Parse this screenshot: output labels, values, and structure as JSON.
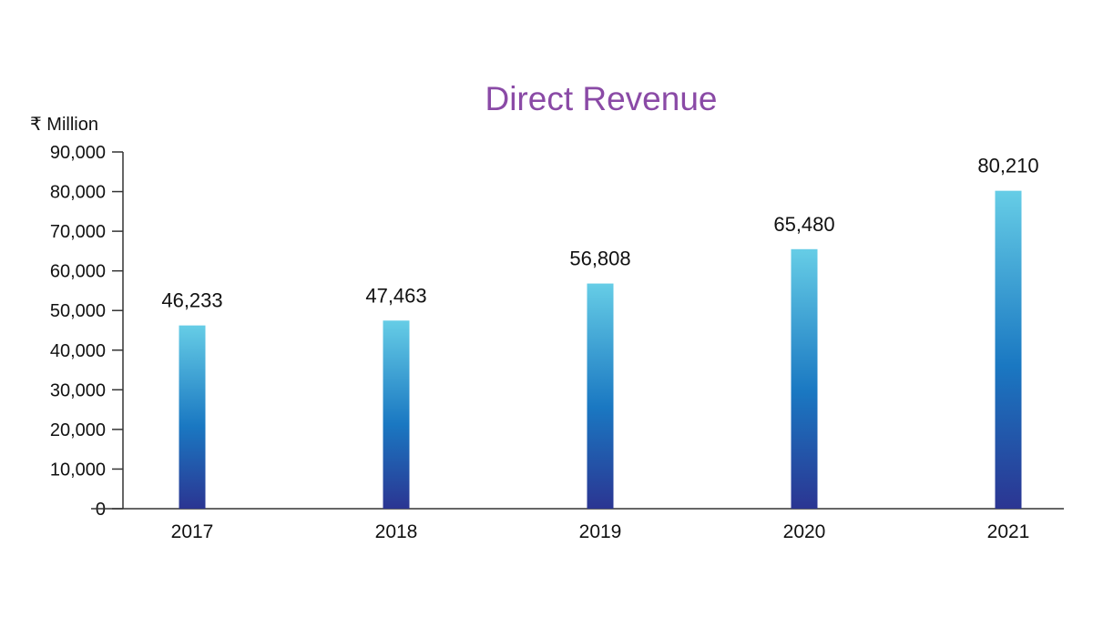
{
  "chart_data": {
    "type": "bar",
    "title": "Direct Revenue",
    "ylabel": "₹ Million",
    "xlabel": "",
    "categories": [
      "2017",
      "2018",
      "2019",
      "2020",
      "2021"
    ],
    "values": [
      46233,
      47463,
      56808,
      65480,
      80210
    ],
    "value_labels": [
      "46,233",
      "47,463",
      "56,808",
      "65,480",
      "80,210"
    ],
    "ylim": [
      0,
      90000
    ],
    "yticks": [
      0,
      10000,
      20000,
      30000,
      40000,
      50000,
      60000,
      70000,
      80000,
      90000
    ],
    "ytick_labels": [
      "0",
      "10,000",
      "20,000",
      "30,000",
      "40,000",
      "50,000",
      "60,000",
      "70,000",
      "80,000",
      "90,000"
    ],
    "grid": false,
    "legend": "none",
    "colors": {
      "title": "#8a4aa6",
      "bar_top": "#66cde6",
      "bar_mid": "#1a78c2",
      "bar_bottom": "#2b3592",
      "axis": "#333333"
    }
  }
}
